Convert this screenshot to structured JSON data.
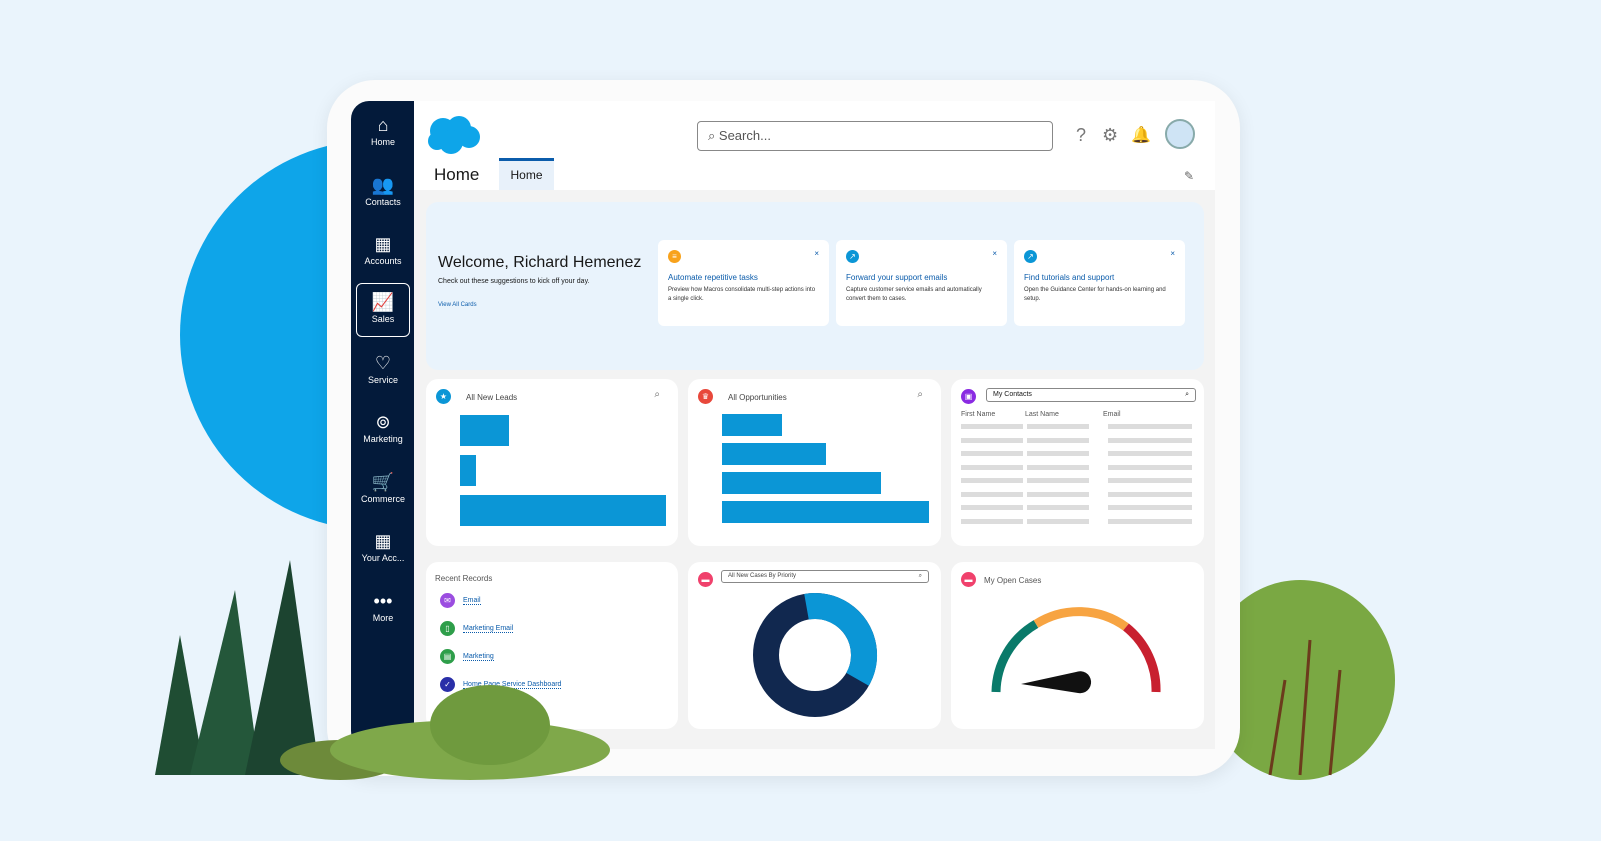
{
  "nav": [
    {
      "label": "Home",
      "icon": "home-icon"
    },
    {
      "label": "Contacts",
      "icon": "contacts-icon"
    },
    {
      "label": "Accounts",
      "icon": "accounts-icon"
    },
    {
      "label": "Sales",
      "icon": "sales-icon",
      "active": true
    },
    {
      "label": "Service",
      "icon": "heart-icon"
    },
    {
      "label": "Marketing",
      "icon": "marketing-icon"
    },
    {
      "label": "Commerce",
      "icon": "cart-icon"
    },
    {
      "label": "Your Acc...",
      "icon": "account-grid-icon"
    },
    {
      "label": "More",
      "icon": "more-icon"
    }
  ],
  "header": {
    "search_placeholder": "Search...",
    "page_title": "Home",
    "tab": "Home"
  },
  "welcome": {
    "title": "Welcome, Richard Hemenez",
    "subtitle": "Check out these suggestions to kick off your day.",
    "link": "View All Cards",
    "cards": [
      {
        "title": "Automate repetitive tasks",
        "desc": "Preview how Macros consolidate multi-step actions into a single click.",
        "color": "#f8a21c"
      },
      {
        "title": "Forward your support emails",
        "desc": "Capture customer service emails and automatically convert them to cases.",
        "color": "#0b96d6"
      },
      {
        "title": "Find tutorials and support",
        "desc": "Open the Guidance Center for hands-on learning and setup.",
        "color": "#0b96d6"
      }
    ]
  },
  "leads": {
    "title": "All New Leads",
    "bar_fractions": [
      0.24,
      0.08,
      1.0
    ]
  },
  "opportunities": {
    "title": "All Opportunities",
    "bar_fractions": [
      0.29,
      0.5,
      0.77,
      1.0
    ]
  },
  "contacts": {
    "title": "My Contacts",
    "columns": [
      "First Name",
      "Last Name",
      "Email"
    ]
  },
  "recent": {
    "title": "Recent Records",
    "items": [
      {
        "label": "Email",
        "color": "#9b4de0"
      },
      {
        "label": "Marketing Email",
        "color": "#2e9e4a"
      },
      {
        "label": "Marketing",
        "color": "#2e9e4a"
      },
      {
        "label": "Home Page Service Dashboard",
        "color": "#2a2fa8"
      }
    ]
  },
  "cases": {
    "title": "All New Cases By Priority",
    "light_fraction": 0.36
  },
  "open_cases": {
    "title": "My Open Cases"
  },
  "colors": {
    "brand": "#0b96d6",
    "navy": "#031a3a"
  }
}
